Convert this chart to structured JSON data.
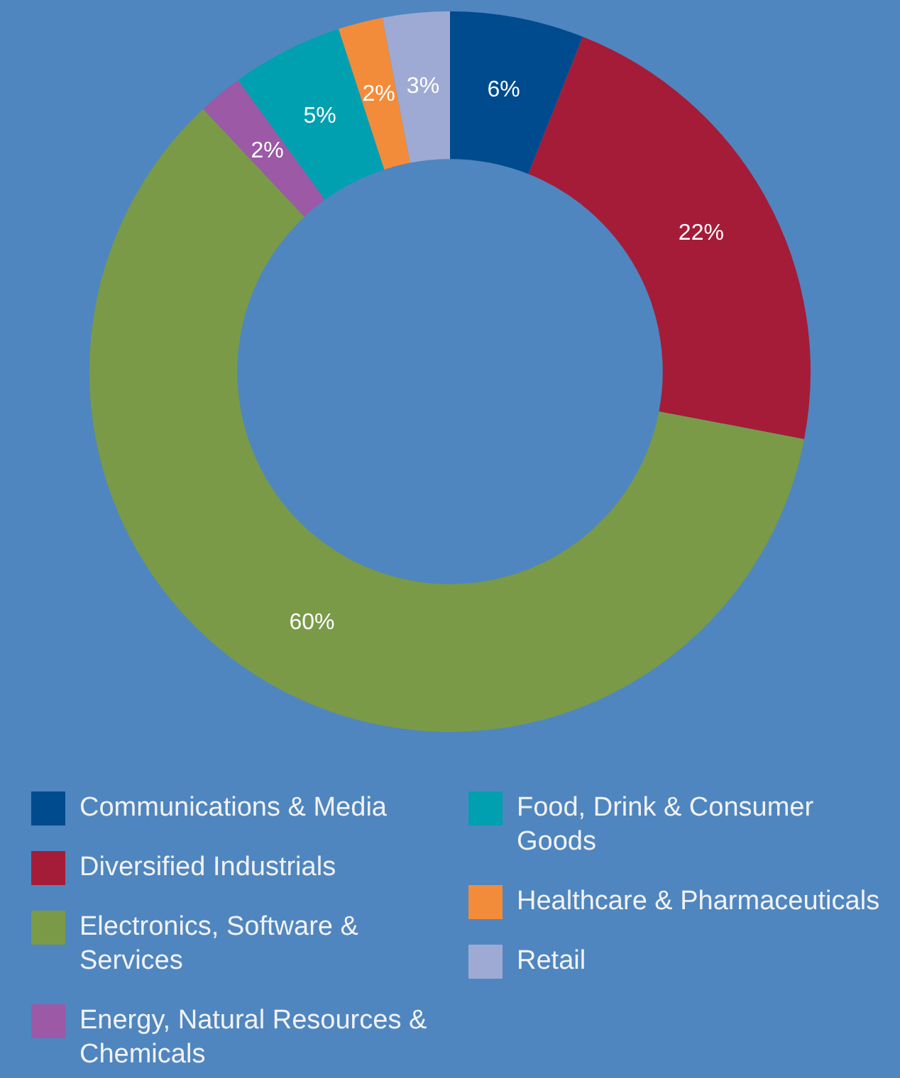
{
  "chart_data": {
    "type": "donut",
    "categories": [
      "Communications & Media",
      "Diversified Industrials",
      "Electronics, Software & Services",
      "Energy, Natural Resources & Chemicals",
      "Food, Drink & Consumer Goods",
      "Healthcare & Pharmaceuticals",
      "Retail"
    ],
    "values": [
      6,
      22,
      60,
      2,
      5,
      2,
      3
    ],
    "colors": [
      "#004b8d",
      "#a51c38",
      "#7a9a48",
      "#9b59a6",
      "#00a0b0",
      "#f28c3a",
      "#9eaad4"
    ],
    "value_labels": [
      "6%",
      "22%",
      "60%",
      "2%",
      "5%",
      "2%",
      "3%"
    ],
    "legend": "bottom"
  }
}
